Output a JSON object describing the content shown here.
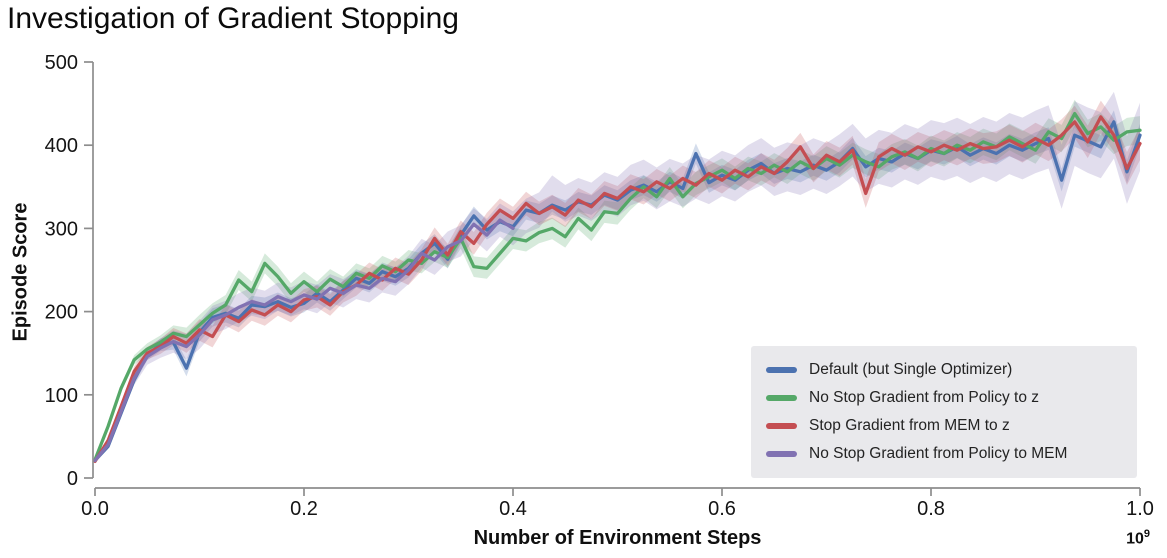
{
  "title": "Investigation of Gradient Stopping",
  "chart_data": {
    "type": "line",
    "title": "Investigation of Gradient Stopping",
    "xlabel": "Number of Environment Steps",
    "ylabel": "Episode Score",
    "x_offset_text": "10",
    "x_offset_exp": "9",
    "xlim": [
      0.0,
      1.0
    ],
    "ylim": [
      0,
      500
    ],
    "x_ticks": [
      "0.0",
      "0.2",
      "0.4",
      "0.6",
      "0.8",
      "1.0"
    ],
    "y_ticks": [
      "0",
      "100",
      "200",
      "300",
      "400",
      "500"
    ],
    "grid": false,
    "legend_position": "lower right",
    "x_start": 0,
    "x_step": 0.0125,
    "series": [
      {
        "name": "Default (but Single Optimizer)",
        "color": "#4C72B0",
        "band_halfwidth": 11,
        "band_growth": 3,
        "values": [
          21,
          38,
          78,
          118,
          148,
          160,
          163,
          132,
          175,
          193,
          198,
          192,
          208,
          206,
          212,
          205,
          210,
          222,
          212,
          226,
          240,
          234,
          248,
          242,
          252,
          270,
          282,
          263,
          292,
          315,
          298,
          308,
          302,
          322,
          318,
          328,
          322,
          332,
          328,
          340,
          334,
          346,
          352,
          344,
          356,
          348,
          390,
          355,
          364,
          358,
          370,
          378,
          366,
          372,
          368,
          376,
          370,
          380,
          396,
          374,
          384,
          380,
          390,
          384,
          394,
          390,
          398,
          388,
          396,
          390,
          400,
          394,
          402,
          408,
          358,
          412,
          405,
          398,
          428,
          368,
          412
        ]
      },
      {
        "name": "No Stop Gradient from Policy to z",
        "color": "#55A868",
        "band_halfwidth": 12,
        "band_growth": 5,
        "values": [
          22,
          62,
          108,
          142,
          155,
          163,
          174,
          170,
          184,
          198,
          208,
          238,
          224,
          258,
          242,
          222,
          236,
          224,
          239,
          230,
          246,
          240,
          255,
          248,
          262,
          258,
          272,
          265,
          288,
          254,
          252,
          270,
          288,
          285,
          295,
          300,
          290,
          312,
          298,
          320,
          318,
          336,
          350,
          338,
          360,
          338,
          354,
          362,
          370,
          360,
          372,
          366,
          376,
          368,
          380,
          372,
          384,
          376,
          388,
          380,
          374,
          386,
          392,
          384,
          396,
          390,
          400,
          394,
          404,
          398,
          410,
          402,
          394,
          416,
          408,
          438,
          414,
          422,
          406,
          416,
          418
        ]
      },
      {
        "name": "Stop Gradient from MEM to z",
        "color": "#C44E52",
        "band_halfwidth": 13,
        "band_growth": 7,
        "values": [
          20,
          45,
          86,
          128,
          150,
          158,
          170,
          162,
          178,
          170,
          196,
          188,
          202,
          196,
          208,
          200,
          214,
          218,
          208,
          224,
          232,
          246,
          238,
          252,
          245,
          262,
          288,
          268,
          296,
          282,
          305,
          322,
          312,
          330,
          318,
          326,
          316,
          334,
          326,
          342,
          336,
          350,
          344,
          356,
          348,
          360,
          352,
          366,
          358,
          370,
          362,
          374,
          366,
          380,
          398,
          372,
          388,
          380,
          394,
          342,
          386,
          396,
          388,
          398,
          392,
          400,
          394,
          402,
          396,
          398,
          406,
          398,
          408,
          400,
          412,
          428,
          404,
          434,
          412,
          372,
          402
        ]
      },
      {
        "name": "No Stop Gradient from Policy to MEM",
        "color": "#8172B2",
        "band_halfwidth": 17,
        "band_growth": 24,
        "line_visible_until_x": 0.4,
        "values": [
          21,
          40,
          80,
          120,
          146,
          156,
          164,
          158,
          172,
          190,
          196,
          205,
          212,
          208,
          218,
          212,
          220,
          215,
          228,
          222,
          232,
          228,
          240,
          236,
          250,
          270,
          262,
          278,
          285,
          305,
          292,
          310,
          300,
          315,
          322,
          342,
          330,
          338,
          332,
          344,
          338,
          352,
          358,
          348,
          358,
          352,
          362,
          356,
          366,
          360,
          372,
          380,
          368,
          374,
          370,
          378,
          372,
          382,
          394,
          376,
          386,
          382,
          392,
          386,
          396,
          392,
          398,
          390,
          398,
          392,
          402,
          396,
          404,
          410,
          362,
          414,
          406,
          400,
          424,
          370,
          410
        ]
      }
    ]
  },
  "colors": {
    "legend_bg": "#E9E9EC",
    "axis": "#8D8D8D",
    "text": "#141414"
  }
}
